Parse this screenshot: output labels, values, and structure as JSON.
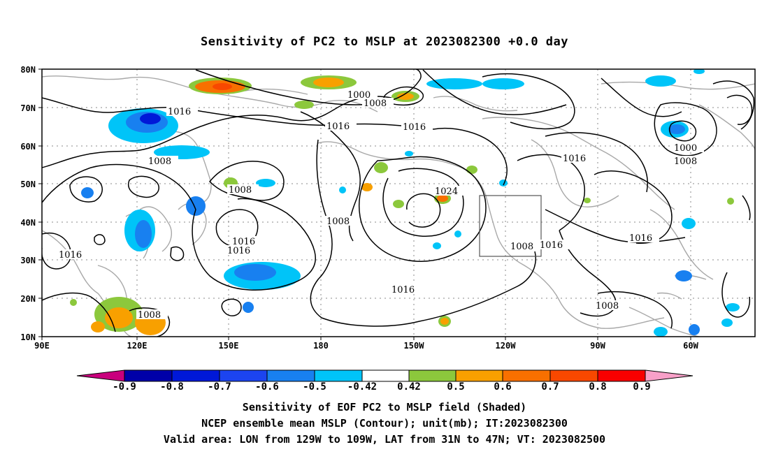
{
  "title": "Sensitivity of PC2 to MSLP at 2023082300 +0.0 day",
  "lat_labels": [
    "80N",
    "70N",
    "60N",
    "50N",
    "40N",
    "30N",
    "20N",
    "10N"
  ],
  "lon_labels": [
    "90E",
    "120E",
    "150E",
    "180",
    "150W",
    "120W",
    "90W",
    "60W"
  ],
  "isobar_labels": [
    "1016",
    "1008",
    "1000",
    "1008",
    "1016",
    "1016",
    "1008",
    "1016",
    "1016",
    "1024",
    "1008",
    "1016",
    "1016",
    "1016",
    "1016",
    "1008",
    "1016",
    "1008",
    "1000",
    "1008",
    "1008",
    "1016",
    "1008",
    "1016",
    "1008"
  ],
  "colorbar": {
    "labels": [
      "-0.9",
      "-0.8",
      "-0.7",
      "-0.6",
      "-0.5",
      "-0.42",
      "0.42",
      "0.5",
      "0.6",
      "0.7",
      "0.8",
      "0.9"
    ],
    "colors": [
      "#c9007d",
      "#0000a8",
      "#0018d8",
      "#1c44f0",
      "#1880f0",
      "#00c4f8",
      "#ffffff",
      "#8cc83c",
      "#f8a000",
      "#f87000",
      "#f84800",
      "#f80000",
      "#f8a0c8"
    ]
  },
  "captions": [
    "Sensitivity of EOF PC2 to MSLP field (Shaded)",
    "NCEP ensemble mean MSLP (Contour); unit(mb); IT:2023082300",
    "Valid area: LON from 129W to 109W, LAT from 31N to 47N; VT: 2023082500"
  ]
}
